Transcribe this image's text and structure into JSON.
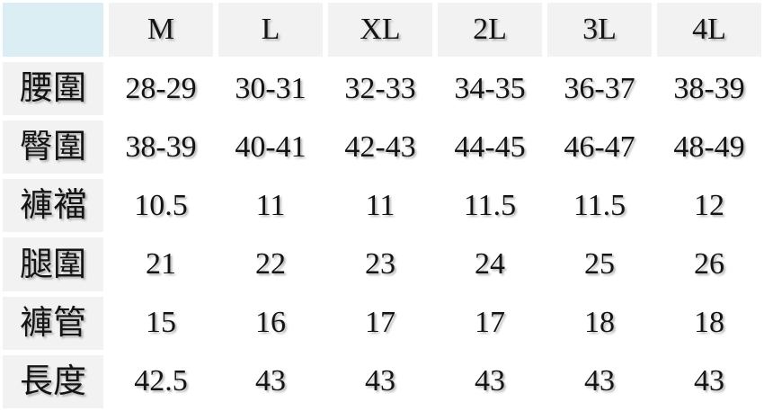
{
  "chart_data": {
    "type": "table",
    "corner": "",
    "columns": [
      "M",
      "L",
      "XL",
      "2L",
      "3L",
      "4L"
    ],
    "rows": [
      {
        "label": "腰圍",
        "values": [
          "28-29",
          "30-31",
          "32-33",
          "34-35",
          "36-37",
          "38-39"
        ]
      },
      {
        "label": "臀圍",
        "values": [
          "38-39",
          "40-41",
          "42-43",
          "44-45",
          "46-47",
          "48-49"
        ]
      },
      {
        "label": "褲襠",
        "values": [
          "10.5",
          "11",
          "11",
          "11.5",
          "11.5",
          "12"
        ]
      },
      {
        "label": "腿圍",
        "values": [
          "21",
          "22",
          "23",
          "24",
          "25",
          "26"
        ]
      },
      {
        "label": "褲管",
        "values": [
          "15",
          "16",
          "17",
          "17",
          "18",
          "18"
        ]
      },
      {
        "label": "長度",
        "values": [
          "42.5",
          "43",
          "43",
          "43",
          "43",
          "43"
        ]
      }
    ],
    "colors": {
      "corner_bg": "#daeef3",
      "header_bg": "#f2f2f2",
      "row_label_bg": "#f2f2f2",
      "cell_bg": "#ffffff",
      "gutter": "#ffffff",
      "text": "#141414"
    }
  }
}
